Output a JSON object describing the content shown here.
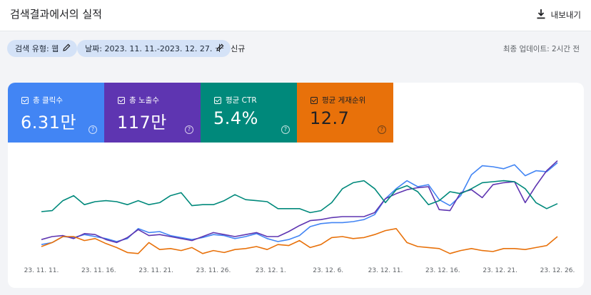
{
  "header": {
    "title": "검색결과에서의 실적",
    "export_label": "내보내기",
    "export_icon": "download-icon"
  },
  "filters": {
    "search_type": "검색 유형: 웹",
    "date": "날짜: 2023. 11. 11.-2023. 12. 27.",
    "new_label": "신규",
    "edit_icon": "pencil-icon",
    "updated": "최종 업데이트: 2시간 전"
  },
  "metrics": [
    {
      "label": "총 클릭수",
      "value": "6.31만",
      "color": "#4285f4",
      "checked": true
    },
    {
      "label": "총 노출수",
      "value": "117만",
      "color": "#5e35b1",
      "checked": true
    },
    {
      "label": "평균 CTR",
      "value": "5.4%",
      "color": "#00897b",
      "checked": true
    },
    {
      "label": "평균 게재순위",
      "value": "12.7",
      "color": "#e8710a",
      "checked": true
    }
  ],
  "chart_data": {
    "type": "line",
    "x_labels": [
      "23. 11. 11.",
      "23. 11. 16.",
      "23. 11. 21.",
      "23. 11. 26.",
      "23. 12. 1.",
      "23. 12. 6.",
      "23. 12. 11.",
      "23. 12. 16.",
      "23. 12. 21.",
      "23. 12. 26."
    ],
    "normalized": true,
    "ylim": [
      0,
      100
    ],
    "grid": false,
    "legend": "metric cards above chart",
    "series": [
      {
        "name": "총 클릭수",
        "color": "#4285f4",
        "values": [
          12,
          14,
          20,
          19,
          22,
          20,
          18,
          15,
          18,
          28,
          24,
          25,
          21,
          19,
          17,
          19,
          22,
          21,
          18,
          20,
          23,
          18,
          15,
          17,
          21,
          30,
          33,
          34,
          34,
          35,
          37,
          42,
          58,
          68,
          76,
          70,
          72,
          57,
          51,
          61,
          82,
          91,
          90,
          88,
          92,
          81,
          86,
          85,
          94
        ]
      },
      {
        "name": "총 노출수",
        "color": "#5e35b1",
        "values": [
          17,
          20,
          21,
          18,
          23,
          22,
          17,
          14,
          19,
          27,
          21,
          22,
          20,
          18,
          16,
          20,
          24,
          22,
          20,
          22,
          24,
          20,
          20,
          25,
          31,
          36,
          37,
          39,
          40,
          40,
          40,
          44,
          58,
          63,
          67,
          69,
          70,
          47,
          46,
          64,
          67,
          59,
          72,
          74,
          75,
          54,
          71,
          86,
          96
        ]
      },
      {
        "name": "평균 CTR",
        "color": "#00897b",
        "values": [
          45,
          46,
          56,
          61,
          52,
          55,
          56,
          55,
          52,
          56,
          52,
          54,
          61,
          64,
          51,
          52,
          52,
          56,
          62,
          57,
          56,
          55,
          48,
          48,
          48,
          44,
          46,
          54,
          68,
          74,
          76,
          68,
          54,
          67,
          71,
          65,
          52,
          56,
          65,
          63,
          68,
          74,
          75,
          76,
          75,
          68,
          54,
          48,
          53
        ]
      },
      {
        "name": "평균 게재순위",
        "color": "#e8710a",
        "values": [
          10,
          14,
          20,
          20,
          16,
          18,
          13,
          9,
          4,
          3,
          14,
          7,
          8,
          6,
          9,
          3,
          6,
          4,
          7,
          8,
          10,
          7,
          12,
          11,
          16,
          9,
          12,
          19,
          20,
          18,
          19,
          22,
          26,
          28,
          14,
          10,
          9,
          8,
          3,
          6,
          8,
          6,
          5,
          8,
          8,
          7,
          9,
          11,
          20
        ]
      }
    ]
  }
}
